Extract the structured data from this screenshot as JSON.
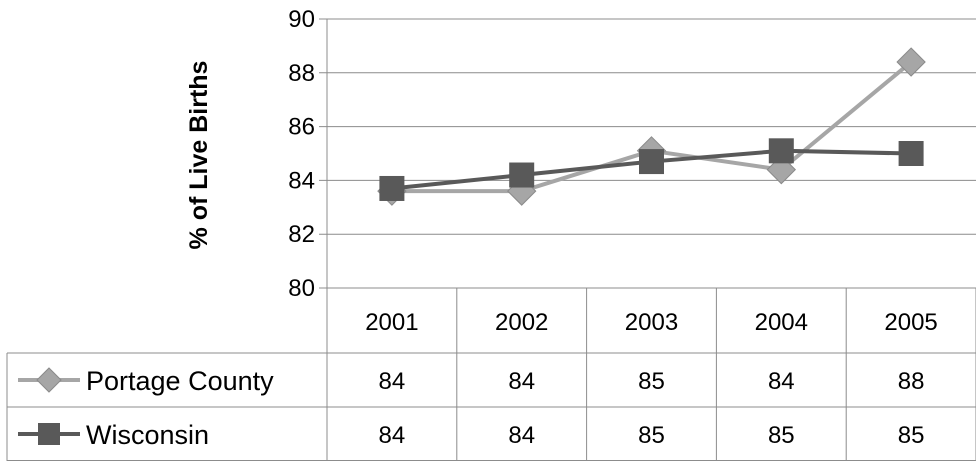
{
  "chart_data": {
    "type": "line",
    "ylabel": "% of Live Births",
    "ylim": [
      80,
      90
    ],
    "yticks": [
      "80",
      "82",
      "84",
      "86",
      "88",
      "90"
    ],
    "categories": [
      "2001",
      "2002",
      "2003",
      "2004",
      "2005"
    ],
    "grid": true,
    "legend": "data table rows below chart",
    "series": [
      {
        "name": "Portage County",
        "marker": "diamond",
        "color": "#a6a6a6",
        "values": [
          83.6,
          83.6,
          85.1,
          84.4,
          88.4
        ],
        "table_values": [
          "84",
          "84",
          "85",
          "84",
          "88"
        ]
      },
      {
        "name": "Wisconsin",
        "marker": "square",
        "color": "#595959",
        "values": [
          83.7,
          84.2,
          84.7,
          85.1,
          85.0
        ],
        "table_values": [
          "84",
          "84",
          "85",
          "85",
          "85"
        ]
      }
    ]
  }
}
